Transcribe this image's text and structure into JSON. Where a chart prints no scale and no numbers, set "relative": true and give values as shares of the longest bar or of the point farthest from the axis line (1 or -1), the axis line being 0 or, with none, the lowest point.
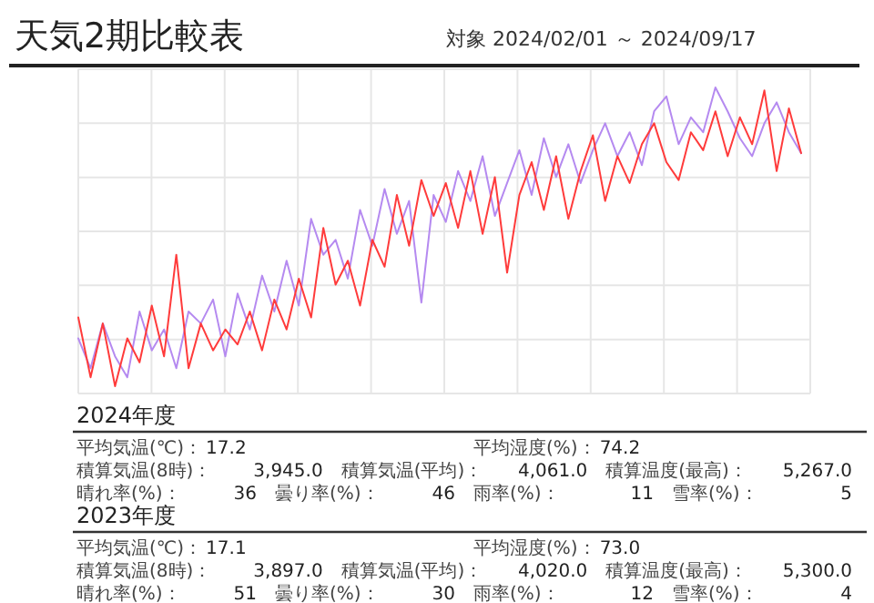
{
  "chart_data": [
    {
      "type": "line",
      "title": "天気2期比較表",
      "subtitle": "対象 2024/02/01 ～ 2024/09/17",
      "relative": true,
      "grid": true,
      "categories": [
        null,
        null,
        null,
        null,
        null,
        null,
        null,
        null,
        null,
        null,
        null,
        null,
        null,
        null,
        null,
        null,
        null,
        null,
        null,
        null,
        null,
        null,
        null,
        null,
        null,
        null,
        null,
        null,
        null,
        null,
        null,
        null,
        null,
        null,
        null,
        null,
        null,
        null,
        null,
        null,
        null,
        null,
        null,
        null,
        null,
        null,
        null,
        null,
        null,
        null,
        null,
        null,
        null,
        null,
        null,
        null,
        null,
        null,
        null,
        null
      ],
      "series": [
        {
          "color": "#b58af0",
          "values": [
            0.16,
            0.06,
            0.21,
            0.1,
            0.03,
            0.25,
            0.12,
            0.19,
            0.06,
            0.25,
            0.21,
            0.29,
            0.1,
            0.31,
            0.19,
            0.37,
            0.25,
            0.42,
            0.27,
            0.56,
            0.44,
            0.49,
            0.36,
            0.59,
            0.47,
            0.66,
            0.51,
            0.62,
            0.28,
            0.64,
            0.55,
            0.72,
            0.62,
            0.77,
            0.57,
            0.68,
            0.79,
            0.64,
            0.83,
            0.7,
            0.81,
            0.68,
            0.79,
            0.88,
            0.77,
            0.85,
            0.74,
            0.92,
            0.97,
            0.81,
            0.9,
            0.85,
            1,
            0.92,
            0.83,
            0.77,
            0.88,
            0.95,
            0.85,
            0.78
          ]
        },
        {
          "color": "#ff3b3b",
          "values": [
            0.23,
            0.03,
            0.21,
            0,
            0.16,
            0.08,
            0.27,
            0.1,
            0.44,
            0.06,
            0.21,
            0.12,
            0.19,
            0.14,
            0.25,
            0.12,
            0.29,
            0.19,
            0.36,
            0.23,
            0.53,
            0.34,
            0.42,
            0.27,
            0.49,
            0.4,
            0.64,
            0.47,
            0.69,
            0.57,
            0.68,
            0.53,
            0.72,
            0.51,
            0.7,
            0.38,
            0.64,
            0.75,
            0.59,
            0.77,
            0.56,
            0.72,
            0.84,
            0.62,
            0.77,
            0.68,
            0.81,
            0.88,
            0.75,
            0.69,
            0.85,
            0.79,
            0.92,
            0.77,
            0.9,
            0.81,
            0.99,
            0.72,
            0.93,
            0.78
          ]
        }
      ]
    },
    {
      "type": "other",
      "title": "2024年度",
      "annotations": [
        "平均気温(℃)：",
        "17.2",
        "平均湿度(%)：",
        "74.2",
        "積算気温(8時)：",
        "3,945.0",
        "積算気温(平均)：",
        "4,061.0",
        "積算温度(最高)：",
        "5,267.0",
        "晴れ率(%)：",
        "36",
        "曇り率(%)：",
        "46",
        "雨率(%)：",
        "11",
        "雪率(%)：",
        "5"
      ]
    },
    {
      "type": "other",
      "title": "2023年度",
      "annotations": [
        "平均気温(℃)：",
        "17.1",
        "平均湿度(%)：",
        "73.0",
        "積算気温(8時)：",
        "3,897.0",
        "積算気温(平均)：",
        "4,020.0",
        "積算温度(最高)：",
        "5,300.0",
        "晴れ率(%)：",
        "51",
        "曇り率(%)：",
        "30",
        "雨率(%)：",
        "12",
        "雪率(%)：",
        "4"
      ]
    }
  ]
}
